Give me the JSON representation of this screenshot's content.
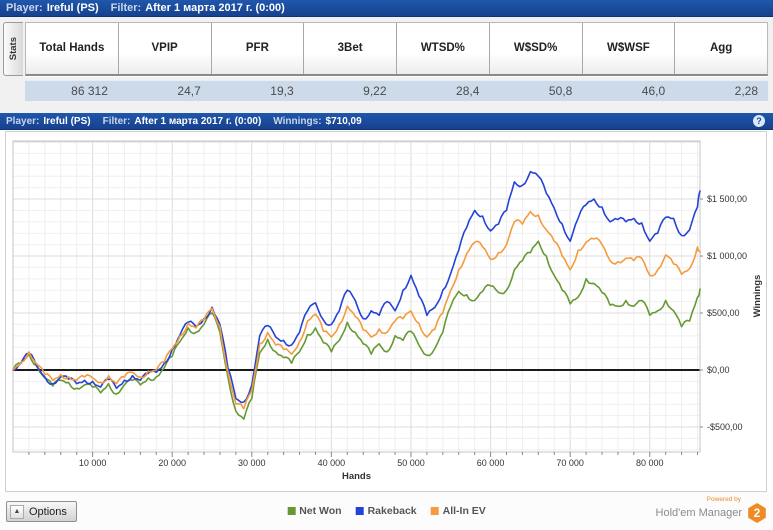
{
  "header_top": {
    "player_label": "Player:",
    "player": "Ireful (PS)",
    "filter_label": "Filter:",
    "filter": "After 1 марта 2017 г. (0:00)"
  },
  "stats_tab": "Stats",
  "stats": {
    "columns": [
      {
        "label": "Total Hands",
        "value": "86 312"
      },
      {
        "label": "VPIP",
        "value": "24,7"
      },
      {
        "label": "PFR",
        "value": "19,3"
      },
      {
        "label": "3Bet",
        "value": "9,22"
      },
      {
        "label": "WTSD%",
        "value": "28,4"
      },
      {
        "label": "W$SD%",
        "value": "50,8"
      },
      {
        "label": "W$WSF",
        "value": "46,0"
      },
      {
        "label": "Agg",
        "value": "2,28"
      }
    ]
  },
  "chart_header": {
    "player_label": "Player:",
    "player": "Ireful (PS)",
    "filter_label": "Filter:",
    "filter": "After 1 марта 2017 г. (0:00)",
    "winnings_label": "Winnings:",
    "winnings": "$710,09",
    "help_icon": "?"
  },
  "chart_data": {
    "type": "line",
    "xlabel": "Hands",
    "ylabel": "Winnings",
    "xlim": [
      0,
      86312
    ],
    "ylim": [
      -719,
      2009
    ],
    "x_step": 1000,
    "x_final": 86312,
    "x_minor_step": 2000,
    "y_minor_step": 100,
    "x_ticks": [
      10000,
      20000,
      30000,
      40000,
      50000,
      60000,
      70000,
      80000
    ],
    "x_tick_labels": [
      "10 000",
      "20 000",
      "30 000",
      "40 000",
      "50 000",
      "60 000",
      "70 000",
      "80 000"
    ],
    "y_ticks": [
      1500,
      1000,
      500,
      0,
      -500
    ],
    "y_tick_labels": [
      "$1 500,00",
      "$1 000,00",
      "$500,00",
      "$0,00",
      "-$500,00"
    ],
    "grid": true,
    "legend_position": "bottom",
    "series": [
      {
        "name": "Net Won",
        "color": "#669933",
        "values": [
          0,
          60,
          140,
          40,
          -70,
          -140,
          -90,
          -110,
          -160,
          -130,
          -150,
          -200,
          -120,
          -210,
          -130,
          -90,
          -130,
          -70,
          -60,
          20,
          120,
          250,
          370,
          330,
          400,
          500,
          330,
          -60,
          -360,
          -430,
          -250,
          150,
          270,
          160,
          110,
          60,
          160,
          310,
          370,
          240,
          160,
          260,
          420,
          330,
          230,
          140,
          230,
          160,
          300,
          260,
          340,
          220,
          130,
          190,
          330,
          560,
          690,
          660,
          610,
          690,
          740,
          680,
          700,
          880,
          960,
          1030,
          1130,
          1000,
          830,
          700,
          580,
          640,
          800,
          760,
          680,
          570,
          560,
          610,
          560,
          610,
          480,
          520,
          610,
          520,
          380,
          430,
          640,
          710
        ]
      },
      {
        "name": "Rakeback",
        "color": "#2343d7",
        "values": [
          0,
          65,
          150,
          30,
          -60,
          -120,
          -60,
          -80,
          -120,
          -90,
          -100,
          -150,
          -80,
          -160,
          -90,
          -50,
          -90,
          -30,
          -20,
          60,
          180,
          310,
          420,
          380,
          450,
          550,
          400,
          20,
          -250,
          -280,
          -130,
          300,
          390,
          290,
          260,
          220,
          330,
          520,
          590,
          440,
          400,
          520,
          700,
          610,
          450,
          520,
          480,
          600,
          520,
          700,
          830,
          650,
          480,
          550,
          700,
          850,
          1050,
          1250,
          1400,
          1350,
          1220,
          1280,
          1400,
          1650,
          1620,
          1740,
          1700,
          1550,
          1420,
          1280,
          1130,
          1330,
          1450,
          1500,
          1430,
          1300,
          1320,
          1300,
          1330,
          1290,
          1130,
          1200,
          1340,
          1330,
          1180,
          1230,
          1430,
          1570
        ]
      },
      {
        "name": "All-In EV",
        "color": "#f59b3e",
        "values": [
          0,
          70,
          160,
          50,
          -40,
          -90,
          -40,
          -60,
          -90,
          -60,
          -70,
          -110,
          -50,
          -120,
          -60,
          -20,
          -60,
          -10,
          0,
          70,
          190,
          300,
          410,
          370,
          440,
          540,
          380,
          -20,
          -300,
          -340,
          -180,
          230,
          330,
          220,
          180,
          140,
          250,
          430,
          490,
          340,
          290,
          400,
          560,
          470,
          350,
          290,
          360,
          330,
          430,
          450,
          520,
          410,
          290,
          360,
          500,
          700,
          880,
          1020,
          1120,
          1080,
          970,
          1030,
          1100,
          1300,
          1280,
          1390,
          1360,
          1230,
          1130,
          1000,
          880,
          1050,
          1120,
          1150,
          1100,
          960,
          950,
          980,
          960,
          980,
          830,
          880,
          1010,
          930,
          840,
          890,
          1080,
          1035
        ]
      }
    ]
  },
  "footer": {
    "options_label": "Options",
    "options_arrow": "▲",
    "powered_by": "Powered by",
    "brand": "Hold'em Manager",
    "brand_badge": "2"
  }
}
